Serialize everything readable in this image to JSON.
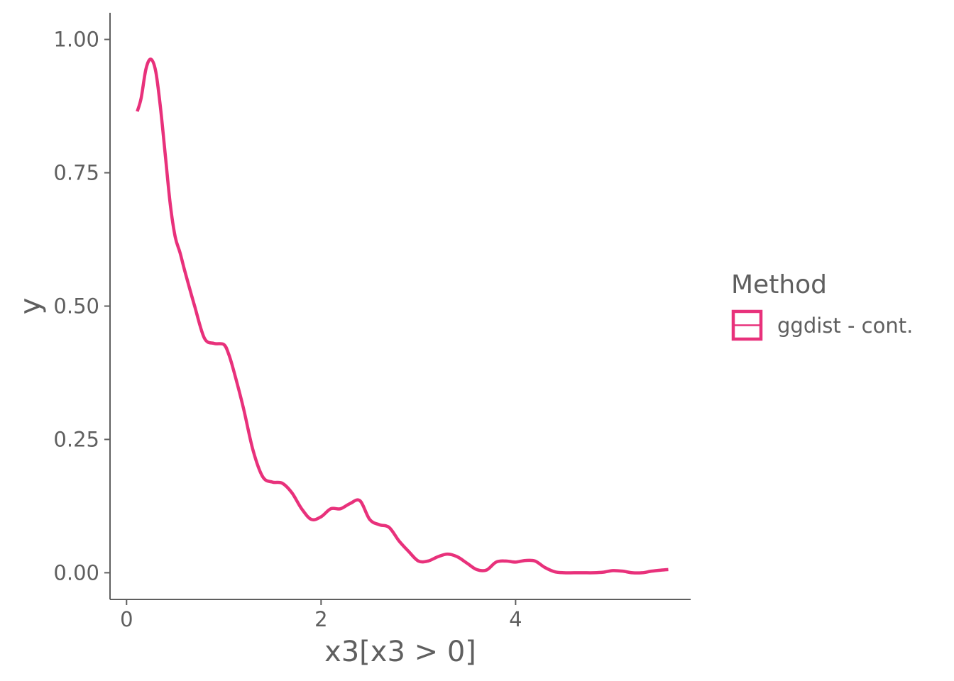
{
  "chart_data": {
    "type": "line",
    "xlabel": "x3[x3 > 0]",
    "ylabel": "y",
    "xlim": [
      -0.17,
      5.8
    ],
    "ylim": [
      -0.05,
      1.05
    ],
    "x_ticks": [
      {
        "value": 0,
        "label": "0"
      },
      {
        "value": 2,
        "label": "2"
      },
      {
        "value": 4,
        "label": "4"
      }
    ],
    "y_ticks": [
      {
        "value": 0,
        "label": "0.00"
      },
      {
        "value": 0.25,
        "label": "0.25"
      },
      {
        "value": 0.5,
        "label": "0.50"
      },
      {
        "value": 0.75,
        "label": "0.75"
      },
      {
        "value": 1.0,
        "label": "1.00"
      }
    ],
    "grid": false,
    "legend": {
      "title": "Method",
      "position": "right",
      "entries": [
        {
          "label": "ggdist - cont.",
          "color": "#e8317b"
        }
      ]
    },
    "series": [
      {
        "name": "ggdist - cont.",
        "color": "#e8317b",
        "x": [
          0.11,
          0.15,
          0.2,
          0.25,
          0.3,
          0.35,
          0.4,
          0.45,
          0.5,
          0.55,
          0.6,
          0.7,
          0.8,
          0.9,
          1.0,
          1.05,
          1.1,
          1.2,
          1.3,
          1.4,
          1.5,
          1.6,
          1.7,
          1.8,
          1.9,
          2.0,
          2.1,
          2.2,
          2.3,
          2.4,
          2.5,
          2.6,
          2.7,
          2.8,
          2.9,
          3.0,
          3.1,
          3.2,
          3.3,
          3.4,
          3.5,
          3.6,
          3.7,
          3.8,
          3.9,
          4.0,
          4.1,
          4.2,
          4.3,
          4.4,
          4.5,
          4.6,
          4.7,
          4.8,
          4.9,
          5.0,
          5.1,
          5.2,
          5.3,
          5.4,
          5.5,
          5.57
        ],
        "values": [
          0.865,
          0.89,
          0.945,
          0.963,
          0.94,
          0.87,
          0.78,
          0.69,
          0.63,
          0.6,
          0.565,
          0.5,
          0.44,
          0.43,
          0.428,
          0.41,
          0.38,
          0.31,
          0.23,
          0.18,
          0.17,
          0.168,
          0.15,
          0.12,
          0.1,
          0.105,
          0.12,
          0.12,
          0.13,
          0.135,
          0.1,
          0.09,
          0.085,
          0.06,
          0.04,
          0.022,
          0.022,
          0.03,
          0.035,
          0.03,
          0.018,
          0.006,
          0.005,
          0.02,
          0.022,
          0.02,
          0.023,
          0.022,
          0.01,
          0.002,
          0.0,
          0.0,
          0.0,
          0.0,
          0.001,
          0.004,
          0.003,
          0.0,
          0.0,
          0.003,
          0.005,
          0.006
        ]
      }
    ]
  }
}
